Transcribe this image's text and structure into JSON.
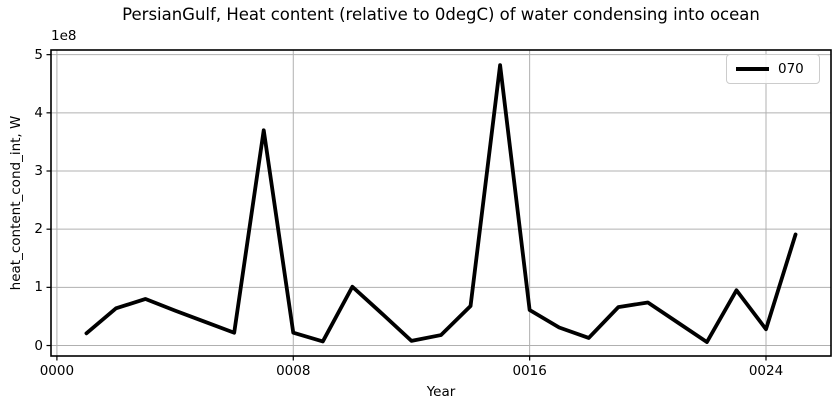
{
  "chart_data": {
    "type": "line",
    "title": "PersianGulf, Heat content (relative to 0degC) of water condensing into ocean",
    "xlabel": "Year",
    "ylabel": "heat_content_cond_int, W",
    "offset_text": "1e8",
    "y_unit": "W",
    "y_scale": 100000000,
    "grid": true,
    "grid_color": "#b0b0b0",
    "background_color": "#ffffff",
    "axis_color": "#000000",
    "xlim": [
      -0.2,
      26.2
    ],
    "ylim": [
      -0.18,
      5.08
    ],
    "xticks": [
      0,
      8,
      16,
      24
    ],
    "xticklabels": [
      "0000",
      "0008",
      "0016",
      "0024"
    ],
    "yticks": [
      0,
      1,
      2,
      3,
      4,
      5
    ],
    "yticklabels": [
      "0",
      "1",
      "2",
      "3",
      "4",
      "5"
    ],
    "legend_position": "upper right",
    "series": [
      {
        "name": "070",
        "color": "#000000",
        "linewidth": 3.8,
        "x": [
          1,
          2,
          3,
          4,
          5,
          6,
          7,
          8,
          9,
          10,
          11,
          12,
          13,
          14,
          15,
          16,
          17,
          18,
          19,
          20,
          21,
          22,
          23,
          24,
          25
        ],
        "y": [
          0.21,
          0.64,
          0.8,
          0.6,
          0.41,
          0.22,
          3.7,
          0.22,
          0.07,
          1.01,
          0.55,
          0.08,
          0.18,
          0.68,
          4.82,
          0.61,
          0.31,
          0.13,
          0.66,
          0.74,
          0.4,
          0.06,
          0.95,
          0.28,
          1.91
        ]
      }
    ]
  }
}
